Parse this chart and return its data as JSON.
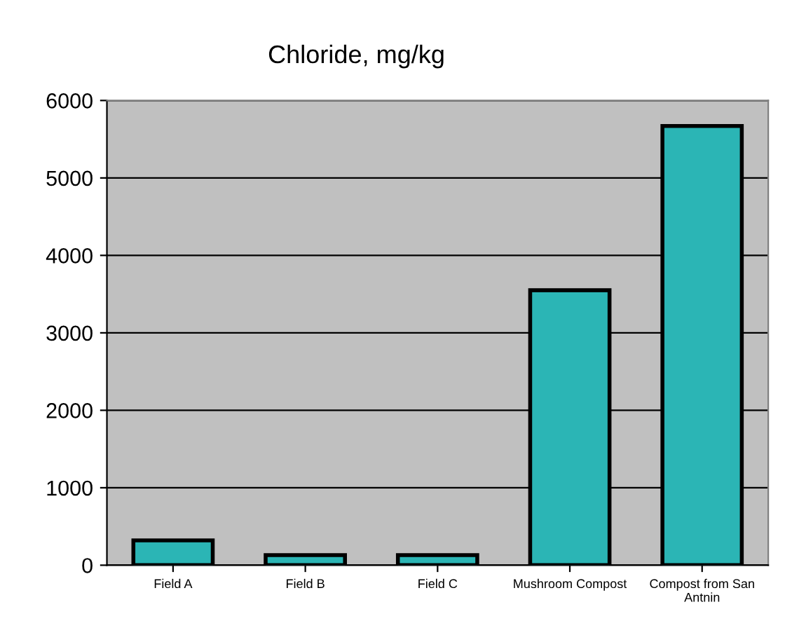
{
  "chart_data": {
    "type": "bar",
    "title": "Chloride, mg/kg",
    "categories": [
      "Field A",
      "Field B",
      "Field C",
      "Mushroom Compost",
      "Compost from San\nAntnin"
    ],
    "values": [
      320,
      130,
      130,
      3550,
      5670
    ],
    "color": "#2bb5b5",
    "ylim": [
      0,
      6000
    ],
    "yticks": [
      0,
      1000,
      2000,
      3000,
      4000,
      5000,
      6000
    ],
    "grid": "y",
    "legend": false
  }
}
